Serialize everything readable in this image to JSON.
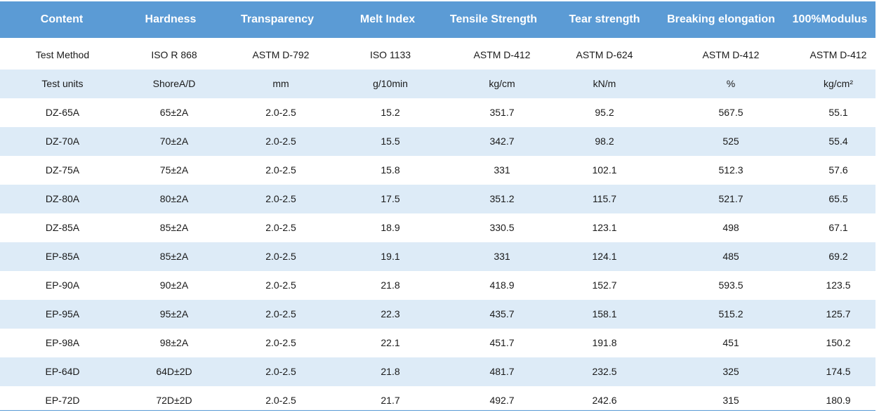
{
  "table": {
    "header_color": "#5b9bd5",
    "stripe_color": "#ddebf7",
    "columns": [
      "Content",
      "Hardness",
      "Transparency",
      "Melt Index",
      "Tensile Strength",
      "Tear strength",
      "Breaking elongation",
      "100%Modulus"
    ],
    "rows": [
      [
        "Test Method",
        "ISO R 868",
        "ASTM D-792",
        "ISO 1133",
        "ASTM D-412",
        "ASTM D-624",
        "ASTM D-412",
        "ASTM D-412"
      ],
      [
        "Test units",
        "ShoreA/D",
        "mm",
        "g/10min",
        "kg/cm",
        "kN/m",
        "%",
        "kg/cm²"
      ],
      [
        "DZ-65A",
        "65±2A",
        "2.0-2.5",
        "15.2",
        "351.7",
        "95.2",
        "567.5",
        "55.1"
      ],
      [
        "DZ-70A",
        "70±2A",
        "2.0-2.5",
        "15.5",
        "342.7",
        "98.2",
        "525",
        "55.4"
      ],
      [
        "DZ-75A",
        "75±2A",
        "2.0-2.5",
        "15.8",
        "331",
        "102.1",
        "512.3",
        "57.6"
      ],
      [
        "DZ-80A",
        "80±2A",
        "2.0-2.5",
        "17.5",
        "351.2",
        "115.7",
        "521.7",
        "65.5"
      ],
      [
        "DZ-85A",
        "85±2A",
        "2.0-2.5",
        "18.9",
        "330.5",
        "123.1",
        "498",
        "67.1"
      ],
      [
        "EP-85A",
        "85±2A",
        "2.0-2.5",
        "19.1",
        "331",
        "124.1",
        "485",
        "69.2"
      ],
      [
        "EP-90A",
        "90±2A",
        "2.0-2.5",
        "21.8",
        "418.9",
        "152.7",
        "593.5",
        "123.5"
      ],
      [
        "EP-95A",
        "95±2A",
        "2.0-2.5",
        "22.3",
        "435.7",
        "158.1",
        "515.2",
        "125.7"
      ],
      [
        "EP-98A",
        "98±2A",
        "2.0-2.5",
        "22.1",
        "451.7",
        "191.8",
        "451",
        "150.2"
      ],
      [
        "EP-64D",
        "64D±2D",
        "2.0-2.5",
        "21.8",
        "481.7",
        "232.5",
        "325",
        "174.5"
      ],
      [
        "EP-72D",
        "72D±2D",
        "2.0-2.5",
        "21.7",
        "492.7",
        "242.6",
        "315",
        "180.9"
      ]
    ]
  }
}
